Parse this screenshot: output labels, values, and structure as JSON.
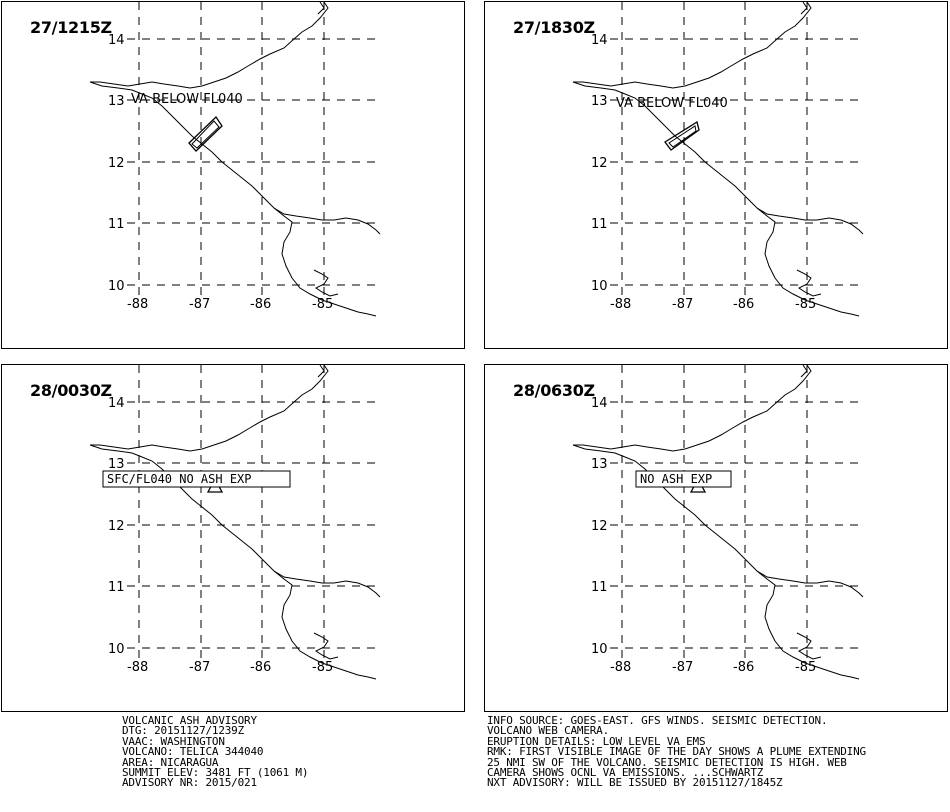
{
  "panels": [
    {
      "timestamp": "27/1215Z",
      "annotation": "VA BELOW FL040",
      "annotation_style": "plain",
      "feature": "plume"
    },
    {
      "timestamp": "27/1830Z",
      "annotation": "VA BELOW FL040",
      "annotation_style": "plain",
      "feature": "plume"
    },
    {
      "timestamp": "28/0030Z",
      "annotation": "SFC/FL040 NO ASH EXP",
      "annotation_style": "boxed",
      "feature": "volcano-triangle"
    },
    {
      "timestamp": "28/0630Z",
      "annotation": "NO ASH EXP",
      "annotation_style": "boxed",
      "feature": "volcano-triangle"
    }
  ],
  "map": {
    "lat_labels": [
      "14",
      "13",
      "12",
      "11",
      "10"
    ],
    "lon_labels": [
      "-88",
      "-87",
      "-86",
      "-85"
    ],
    "gridline_style": "dashed",
    "line_color": "#000000"
  },
  "advisory_left": [
    "VOLCANIC ASH ADVISORY",
    "DTG: 20151127/1239Z",
    "VAAC: WASHINGTON",
    "VOLCANO: TELICA 344040",
    "AREA: NICARAGUA",
    "SUMMIT ELEV: 3481 FT (1061 M)",
    "ADVISORY NR: 2015/021"
  ],
  "advisory_right": [
    "INFO SOURCE: GOES-EAST. GFS WINDS. SEISMIC DETECTION.",
    "VOLCANO WEB CAMERA.",
    "ERUPTION DETAILS: LOW LEVEL VA EMS",
    "RMK: FIRST VISIBLE IMAGE OF THE DAY SHOWS A PLUME EXTENDING",
    "25 NMI SW OF THE VOLCANO. SEISMIC DETECTION IS HIGH. WEB",
    "CAMERA SHOWS OCNL VA EMISSIONS. ...SCHWARTZ",
    "NXT ADVISORY: WILL BE ISSUED BY 20151127/1845Z"
  ]
}
